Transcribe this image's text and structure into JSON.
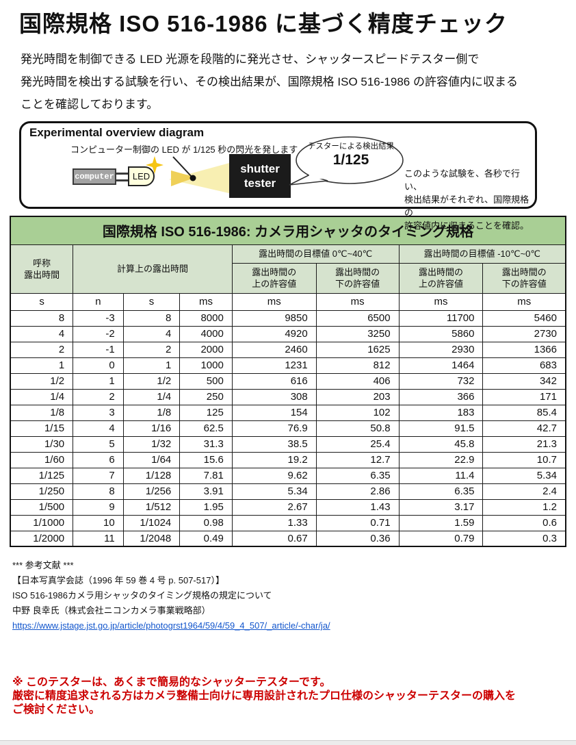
{
  "page": {
    "title": "国際規格 ISO 516-1986 に基づく精度チェック",
    "intro_l1": "発光時間を制御できる LED 光源を段階的に発光させ、シャッタースピードテスター側で",
    "intro_l2": "発光時間を検出する試験を行い、その検出結果が、国際規格 ISO 516-1986 の許容値内に収まる",
    "intro_l3": "ことを確認しております。"
  },
  "diagram": {
    "title": "Experimental overview diagram",
    "led_caption": "コンピューター制御の LED が 1/125 秒の閃光を発します",
    "computer_label": "computer",
    "led_label": "LED",
    "tester_l1": "shutter",
    "tester_l2": "tester",
    "bubble_caption": "テスターによる検出結果",
    "bubble_value": "1/125",
    "note_l1": "このような試験を、各秒で行い、",
    "note_l2": "検出結果がそれぞれ、国際規格の",
    "note_l3": "許容値内に収まることを確認。"
  },
  "table": {
    "title": "国際規格 ISO 516-1986: カメラ用シャッタのタイミング規格",
    "header": {
      "name_l1": "呼称",
      "name_l2": "露出時間",
      "calc": "計算上の露出時間",
      "target_warm": "露出時間の目標値 0℃~40℃",
      "target_cold": "露出時間の目標値 -10℃~0℃",
      "upper_l1": "露出時間の",
      "upper_l2": "上の許容値",
      "lower_l1": "露出時間の",
      "lower_l2": "下の許容値"
    },
    "units": [
      "s",
      "n",
      "s",
      "ms",
      "ms",
      "ms",
      "ms",
      "ms"
    ],
    "rows": [
      [
        "8",
        "-3",
        "8",
        "8000",
        "9850",
        "6500",
        "11700",
        "5460"
      ],
      [
        "4",
        "-2",
        "4",
        "4000",
        "4920",
        "3250",
        "5860",
        "2730"
      ],
      [
        "2",
        "-1",
        "2",
        "2000",
        "2460",
        "1625",
        "2930",
        "1366"
      ],
      [
        "1",
        "0",
        "1",
        "1000",
        "1231",
        "812",
        "1464",
        "683"
      ],
      [
        "1/2",
        "1",
        "1/2",
        "500",
        "616",
        "406",
        "732",
        "342"
      ],
      [
        "1/4",
        "2",
        "1/4",
        "250",
        "308",
        "203",
        "366",
        "171"
      ],
      [
        "1/8",
        "3",
        "1/8",
        "125",
        "154",
        "102",
        "183",
        "85.4"
      ],
      [
        "1/15",
        "4",
        "1/16",
        "62.5",
        "76.9",
        "50.8",
        "91.5",
        "42.7"
      ],
      [
        "1/30",
        "5",
        "1/32",
        "31.3",
        "38.5",
        "25.4",
        "45.8",
        "21.3"
      ],
      [
        "1/60",
        "6",
        "1/64",
        "15.6",
        "19.2",
        "12.7",
        "22.9",
        "10.7"
      ],
      [
        "1/125",
        "7",
        "1/128",
        "7.81",
        "9.62",
        "6.35",
        "11.4",
        "5.34"
      ],
      [
        "1/250",
        "8",
        "1/256",
        "3.91",
        "5.34",
        "2.86",
        "6.35",
        "2.4"
      ],
      [
        "1/500",
        "9",
        "1/512",
        "1.95",
        "2.67",
        "1.43",
        "3.17",
        "1.2"
      ],
      [
        "1/1000",
        "10",
        "1/1024",
        "0.98",
        "1.33",
        "0.71",
        "1.59",
        "0.6"
      ],
      [
        "1/2000",
        "11",
        "1/2048",
        "0.49",
        "0.67",
        "0.36",
        "0.79",
        "0.3"
      ]
    ]
  },
  "references": {
    "heading": "*** 参考文献 ***",
    "l1": "【日本写真学会誌（1996 年 59 巻 4 号 p. 507-517）】",
    "l2": "ISO 516-1986カメラ用シャッタのタイミング規格の規定について",
    "l3": "中野 良幸氏（株式会社ニコンカメラ事業戦略部）",
    "link": "https://www.jstage.jst.go.jp/article/photogrst1964/59/4/59_4_507/_article/-char/ja/"
  },
  "warning": {
    "l1": "※ このテスターは、あくまで簡易的なシャッターテスターです。",
    "l2": "厳密に精度追求される方はカメラ整備士向けに専用設計されたプロ仕様のシャッターテスターの購入を",
    "l3": "ご検討ください。"
  },
  "colors": {
    "table_title_bg": "#a9cf95",
    "table_header_bg": "#d6e3ce",
    "warning_red": "#cc0000",
    "link_blue": "#1155cc"
  }
}
